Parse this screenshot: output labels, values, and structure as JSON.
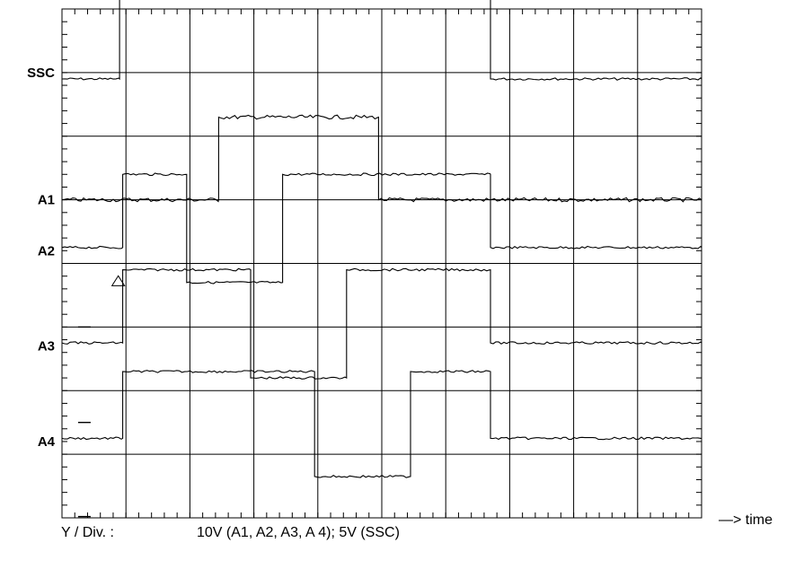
{
  "chart_data": {
    "type": "line",
    "x_label": "—> time",
    "y_scale_label": "Y / Div. :",
    "y_scale_value": "10V (A1, A2, A3, A 4); 5V (SSC)",
    "x_divisions": 10,
    "y_divisions": 8,
    "series": [
      {
        "name": "SSC",
        "low": 6.9,
        "high": 9.83,
        "points": [
          [
            0,
            6.9
          ],
          [
            0.9,
            6.9
          ],
          [
            0.9,
            9.83
          ],
          [
            6.7,
            9.83
          ],
          [
            6.7,
            6.9
          ],
          [
            10,
            6.9
          ]
        ]
      },
      {
        "name": "A1",
        "low": 5.0,
        "high": 6.3,
        "points": [
          [
            0,
            5.0
          ],
          [
            2.45,
            5.0
          ],
          [
            2.45,
            6.3
          ],
          [
            4.95,
            6.3
          ],
          [
            4.95,
            5.0
          ],
          [
            10,
            5.0
          ]
        ]
      },
      {
        "name": "A2",
        "low": 4.25,
        "high": 5.4,
        "points": [
          [
            0,
            4.25
          ],
          [
            0.95,
            4.25
          ],
          [
            0.95,
            5.4
          ],
          [
            1.95,
            5.4
          ],
          [
            1.95,
            3.7
          ],
          [
            3.45,
            3.7
          ],
          [
            3.45,
            5.4
          ],
          [
            6.7,
            5.4
          ],
          [
            6.7,
            4.25
          ],
          [
            10,
            4.25
          ]
        ]
      },
      {
        "name": "A3",
        "low": 2.75,
        "high": 3.9,
        "points": [
          [
            0,
            2.75
          ],
          [
            0.95,
            2.75
          ],
          [
            0.95,
            3.9
          ],
          [
            2.95,
            3.9
          ],
          [
            2.95,
            2.2
          ],
          [
            4.45,
            2.2
          ],
          [
            4.45,
            3.9
          ],
          [
            6.7,
            3.9
          ],
          [
            6.7,
            2.75
          ],
          [
            10,
            2.75
          ]
        ]
      },
      {
        "name": "A4",
        "low": 1.25,
        "high": 2.3,
        "points": [
          [
            0,
            1.25
          ],
          [
            0.95,
            1.25
          ],
          [
            0.95,
            2.3
          ],
          [
            3.95,
            2.3
          ],
          [
            3.95,
            0.65
          ],
          [
            5.45,
            0.65
          ],
          [
            5.45,
            2.3
          ],
          [
            6.7,
            2.3
          ],
          [
            6.7,
            1.25
          ],
          [
            10,
            1.25
          ]
        ]
      }
    ],
    "channel_labels": [
      {
        "text": "SSC",
        "level": 7
      },
      {
        "text": "A1",
        "level": 5
      },
      {
        "text": "A2",
        "level": 4.2
      },
      {
        "text": "A3",
        "level": 2.7
      },
      {
        "text": "A4",
        "level": 1.2
      }
    ],
    "trigger_marker": {
      "x": 0.95,
      "y": 3.72
    },
    "ground_markers": [
      {
        "x": 0.35,
        "y": 3.0
      },
      {
        "x": 0.35,
        "y": 1.5
      },
      {
        "x": 0.35,
        "y": 0.02
      }
    ],
    "grid": true
  }
}
